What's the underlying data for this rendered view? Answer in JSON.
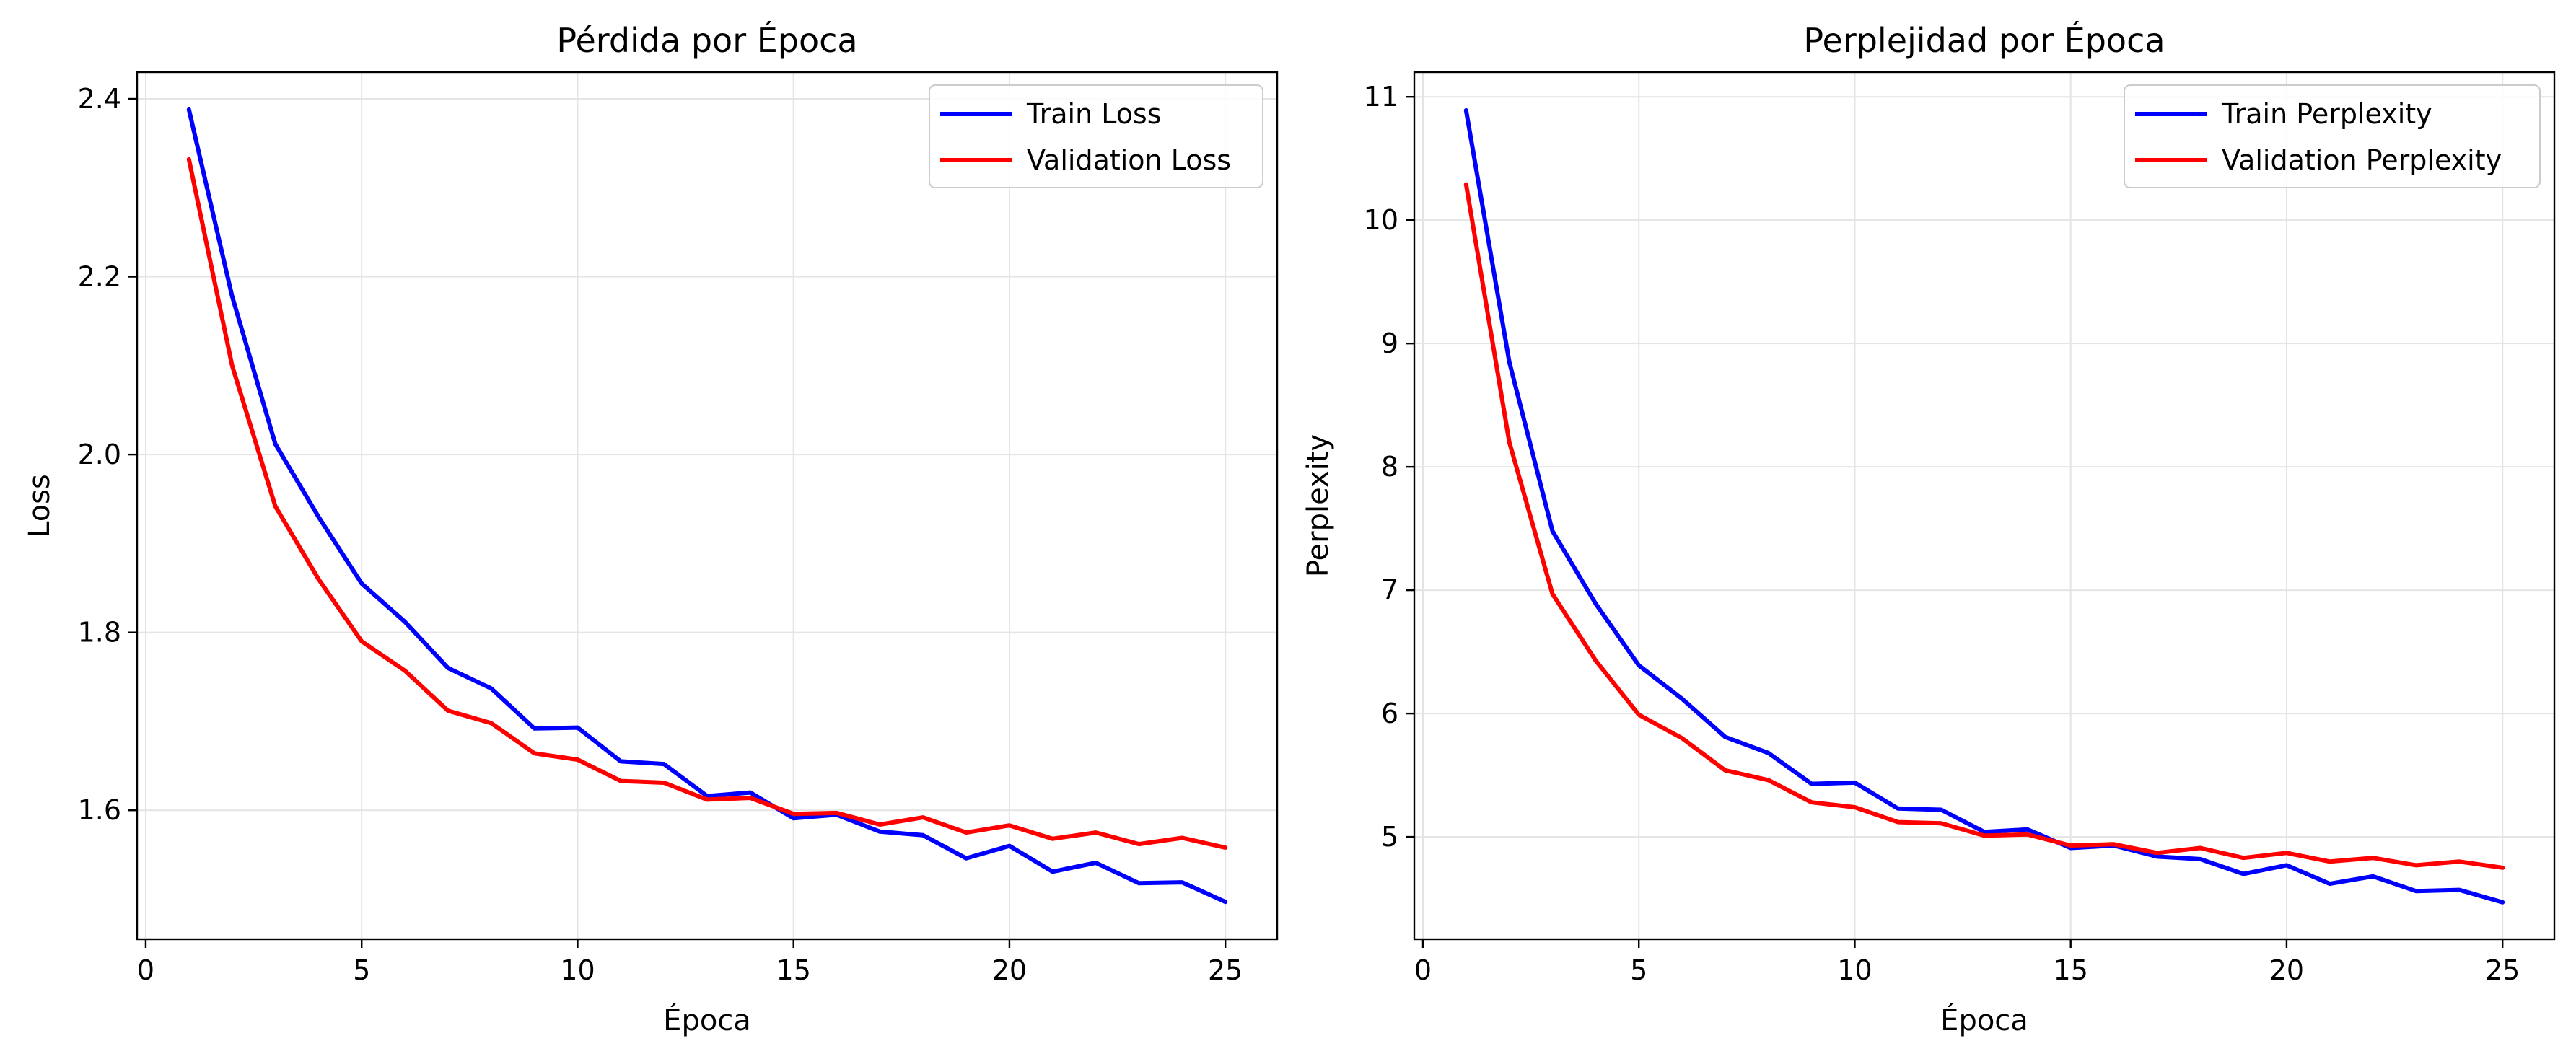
{
  "chart_data": [
    {
      "type": "line",
      "title": "Pérdida por Época",
      "xlabel": "Época",
      "ylabel": "Loss",
      "xlim": [
        -0.2,
        26.2
      ],
      "ylim": [
        1.455,
        2.43
      ],
      "xticks": [
        0,
        5,
        10,
        15,
        20,
        25
      ],
      "xtick_labels": [
        "0",
        "5",
        "10",
        "15",
        "20",
        "25"
      ],
      "yticks": [
        1.6,
        1.8,
        2.0,
        2.2,
        2.4
      ],
      "ytick_labels": [
        "1.6",
        "1.8",
        "2.0",
        "2.2",
        "2.4"
      ],
      "grid": true,
      "legend_position": "top-right",
      "x": [
        1,
        2,
        3,
        4,
        5,
        6,
        7,
        8,
        9,
        10,
        11,
        12,
        13,
        14,
        15,
        16,
        17,
        18,
        19,
        20,
        21,
        22,
        23,
        24,
        25
      ],
      "series": [
        {
          "name": "Train Loss",
          "color": "#0000ff",
          "values": [
            2.388,
            2.178,
            2.012,
            1.93,
            1.855,
            1.812,
            1.76,
            1.737,
            1.692,
            1.693,
            1.655,
            1.652,
            1.616,
            1.62,
            1.591,
            1.595,
            1.576,
            1.572,
            1.546,
            1.56,
            1.531,
            1.541,
            1.518,
            1.519,
            1.497
          ]
        },
        {
          "name": "Validation Loss",
          "color": "#ff0000",
          "values": [
            2.332,
            2.1,
            1.942,
            1.86,
            1.79,
            1.757,
            1.712,
            1.698,
            1.664,
            1.657,
            1.633,
            1.631,
            1.612,
            1.614,
            1.596,
            1.597,
            1.584,
            1.592,
            1.575,
            1.583,
            1.568,
            1.575,
            1.562,
            1.569,
            1.558
          ]
        }
      ]
    },
    {
      "type": "line",
      "title": "Perplejidad por Época",
      "xlabel": "Época",
      "ylabel": "Perplexity",
      "xlim": [
        -0.2,
        26.2
      ],
      "ylim": [
        4.17,
        11.2
      ],
      "xticks": [
        0,
        5,
        10,
        15,
        20,
        25
      ],
      "xtick_labels": [
        "0",
        "5",
        "10",
        "15",
        "20",
        "25"
      ],
      "yticks": [
        5,
        6,
        7,
        8,
        9,
        10,
        11
      ],
      "ytick_labels": [
        "5",
        "6",
        "7",
        "8",
        "9",
        "10",
        "11"
      ],
      "grid": true,
      "legend_position": "top-right",
      "x": [
        1,
        2,
        3,
        4,
        5,
        6,
        7,
        8,
        9,
        10,
        11,
        12,
        13,
        14,
        15,
        16,
        17,
        18,
        19,
        20,
        21,
        22,
        23,
        24,
        25
      ],
      "series": [
        {
          "name": "Train Perplexity",
          "color": "#0000ff",
          "values": [
            10.89,
            8.85,
            7.48,
            6.89,
            6.39,
            6.12,
            5.81,
            5.68,
            5.43,
            5.44,
            5.23,
            5.22,
            5.04,
            5.06,
            4.91,
            4.93,
            4.84,
            4.82,
            4.7,
            4.77,
            4.62,
            4.68,
            4.56,
            4.57,
            4.47
          ]
        },
        {
          "name": "Validation Perplexity",
          "color": "#ff0000",
          "values": [
            10.29,
            8.2,
            6.97,
            6.43,
            5.99,
            5.8,
            5.54,
            5.46,
            5.28,
            5.24,
            5.12,
            5.11,
            5.01,
            5.02,
            4.93,
            4.94,
            4.87,
            4.91,
            4.83,
            4.87,
            4.8,
            4.83,
            4.77,
            4.8,
            4.75
          ]
        }
      ]
    }
  ]
}
